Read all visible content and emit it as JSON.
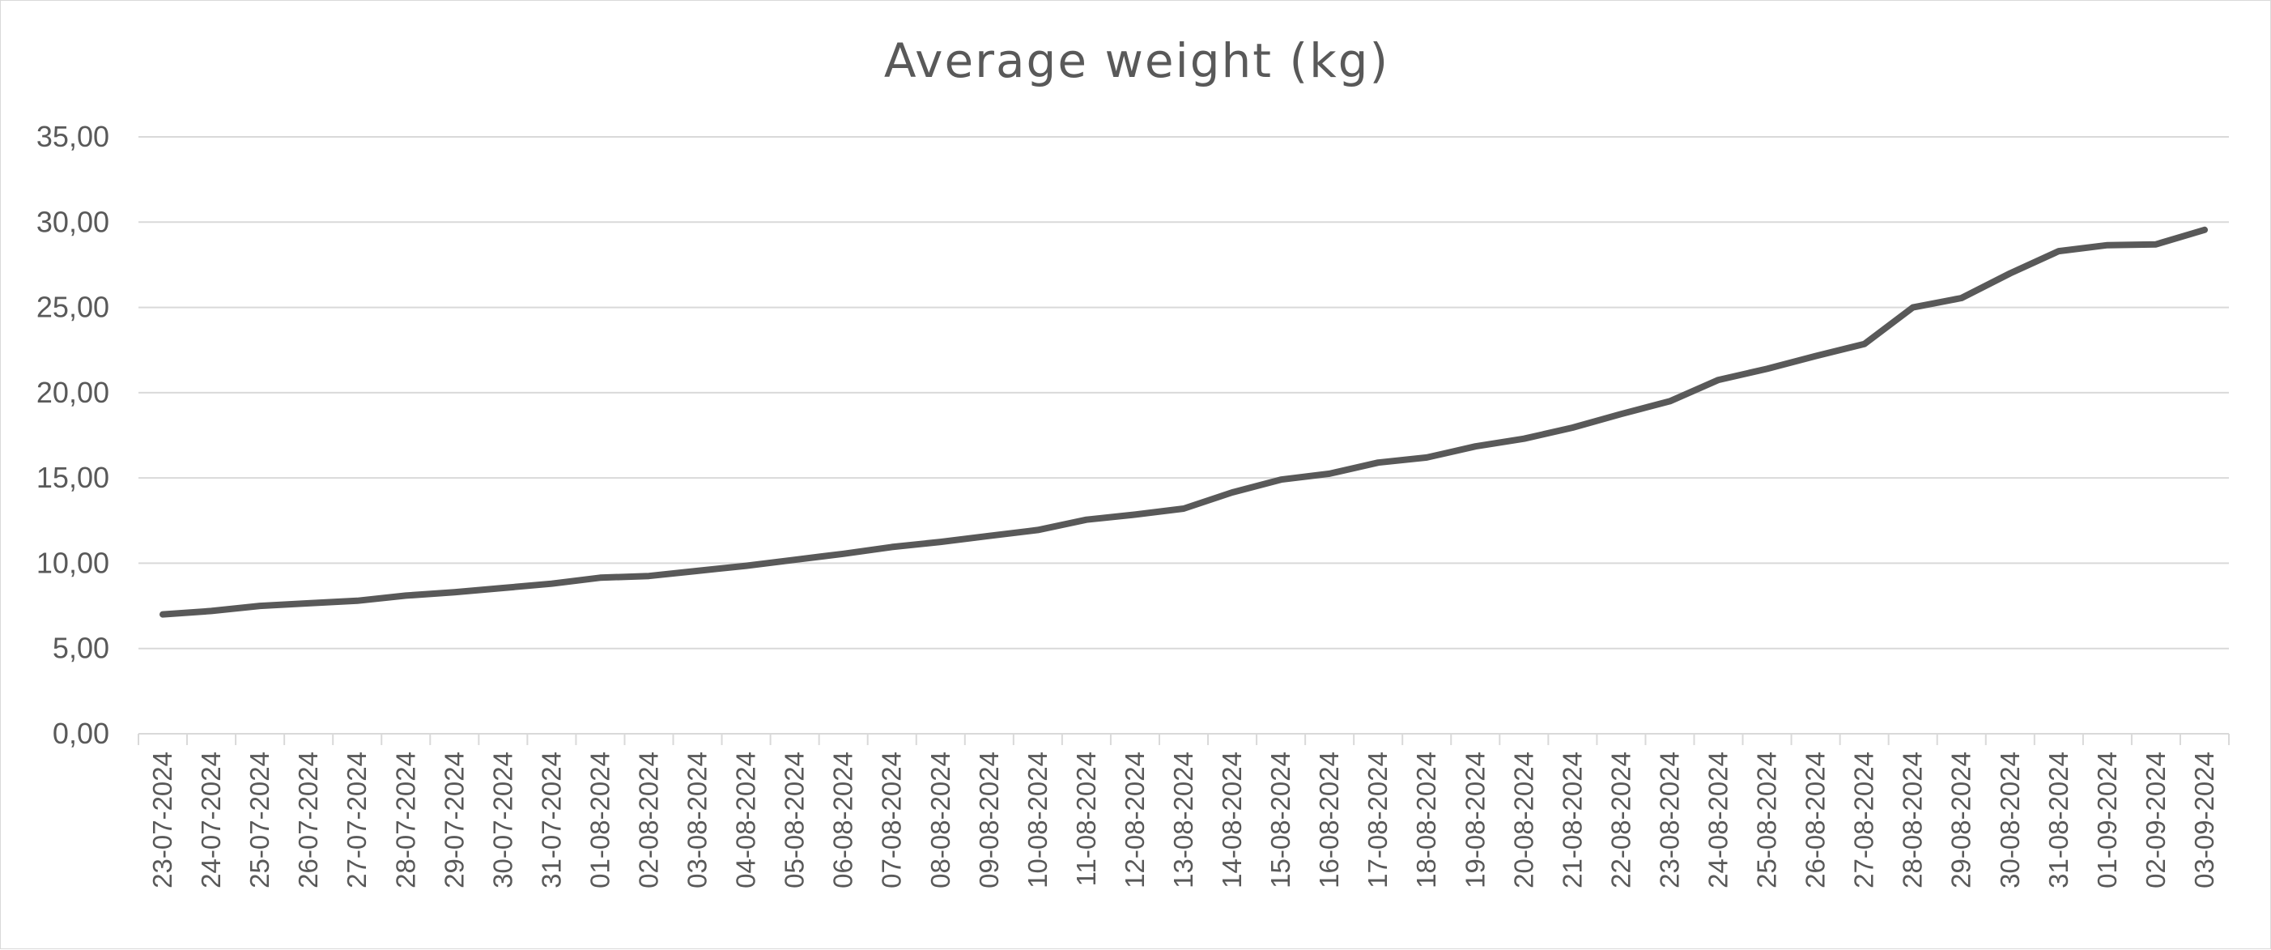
{
  "chart_data": {
    "type": "line",
    "title": "Average weight (kg)",
    "xlabel": "",
    "ylabel": "",
    "ylim": [
      0,
      35
    ],
    "y_ticks": [
      "0,00",
      "5,00",
      "10,00",
      "15,00",
      "20,00",
      "25,00",
      "30,00",
      "35,00"
    ],
    "y_tick_values": [
      0,
      5,
      10,
      15,
      20,
      25,
      30,
      35
    ],
    "grid": true,
    "legend": "none",
    "categories": [
      "23-07-2024",
      "24-07-2024",
      "25-07-2024",
      "26-07-2024",
      "27-07-2024",
      "28-07-2024",
      "29-07-2024",
      "30-07-2024",
      "31-07-2024",
      "01-08-2024",
      "02-08-2024",
      "03-08-2024",
      "04-08-2024",
      "05-08-2024",
      "06-08-2024",
      "07-08-2024",
      "08-08-2024",
      "09-08-2024",
      "10-08-2024",
      "11-08-2024",
      "12-08-2024",
      "13-08-2024",
      "14-08-2024",
      "15-08-2024",
      "16-08-2024",
      "17-08-2024",
      "18-08-2024",
      "19-08-2024",
      "20-08-2024",
      "21-08-2024",
      "22-08-2024",
      "23-08-2024",
      "24-08-2024",
      "25-08-2024",
      "26-08-2024",
      "27-08-2024",
      "28-08-2024",
      "29-08-2024",
      "30-08-2024",
      "31-08-2024",
      "01-09-2024",
      "02-09-2024",
      "03-09-2024"
    ],
    "series": [
      {
        "color": "#595959",
        "values": [
          7.0,
          7.2,
          7.5,
          7.65,
          7.8,
          8.1,
          8.3,
          8.55,
          8.8,
          9.15,
          9.25,
          9.55,
          9.85,
          10.2,
          10.55,
          10.95,
          11.25,
          11.6,
          11.95,
          12.55,
          12.85,
          13.2,
          14.15,
          14.9,
          15.25,
          15.9,
          16.2,
          16.85,
          17.3,
          17.95,
          18.75,
          19.5,
          20.75,
          21.4,
          22.15,
          22.85,
          25.0,
          25.55,
          27.0,
          28.3,
          28.65,
          28.7,
          29.55
        ]
      }
    ]
  }
}
